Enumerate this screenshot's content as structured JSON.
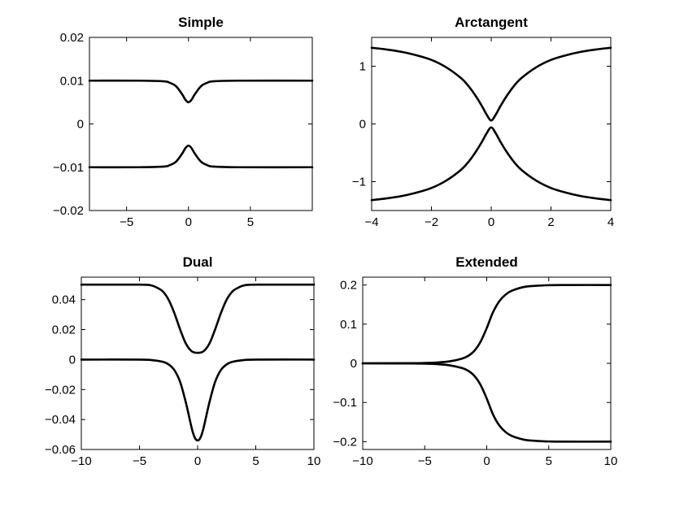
{
  "chart_data": [
    {
      "type": "line",
      "title": "Simple",
      "xlim": [
        -8,
        10
      ],
      "ylim": [
        -0.02,
        0.02
      ],
      "xticks": [
        -5,
        0,
        5
      ],
      "xtick_labels": [
        "−5",
        "0",
        "5"
      ],
      "yticks": [
        -0.02,
        -0.01,
        0,
        0.01,
        0.02
      ],
      "ytick_labels": [
        "−0.02",
        "−0.01",
        "0",
        "0.01",
        "0.02"
      ],
      "series": [
        {
          "x": [
            -8,
            -4,
            -2,
            -1.5,
            -1,
            -0.5,
            -0.25,
            0,
            0.25,
            0.5,
            1,
            1.5,
            2,
            4,
            10
          ],
          "y": [
            0.01,
            0.01,
            0.00985,
            0.0095,
            0.0087,
            0.0068,
            0.0056,
            0.005,
            0.0056,
            0.0068,
            0.0087,
            0.0095,
            0.00985,
            0.01,
            0.01
          ]
        },
        {
          "x": [
            -8,
            -4,
            -2,
            -1.5,
            -1,
            -0.5,
            -0.25,
            0,
            0.25,
            0.5,
            1,
            1.5,
            2,
            4,
            10
          ],
          "y": [
            -0.01,
            -0.01,
            -0.00985,
            -0.0095,
            -0.0087,
            -0.0068,
            -0.0056,
            -0.005,
            -0.0056,
            -0.0068,
            -0.0087,
            -0.0095,
            -0.00985,
            -0.01,
            -0.01
          ]
        }
      ]
    },
    {
      "type": "line",
      "title": "Arctangent",
      "xlim": [
        -4,
        4
      ],
      "ylim": [
        -1.5,
        1.5
      ],
      "xticks": [
        -4,
        -2,
        0,
        2,
        4
      ],
      "xtick_labels": [
        "−4",
        "−2",
        "0",
        "2",
        "4"
      ],
      "yticks": [
        -1,
        0,
        1
      ],
      "ytick_labels": [
        "−1",
        "0",
        "1"
      ],
      "series": [
        {
          "x": [
            -4,
            -3.5,
            -3,
            -2.5,
            -2,
            -1.5,
            -1,
            -0.75,
            -0.5,
            -0.3,
            -0.15,
            0,
            0.15,
            0.3,
            0.5,
            0.75,
            1,
            1.5,
            2,
            2.5,
            3,
            3.5,
            4
          ],
          "y": [
            1.32,
            1.29,
            1.25,
            1.19,
            1.11,
            0.98,
            0.79,
            0.65,
            0.47,
            0.3,
            0.16,
            0.06,
            0.16,
            0.3,
            0.47,
            0.65,
            0.79,
            0.98,
            1.11,
            1.19,
            1.25,
            1.29,
            1.32
          ]
        },
        {
          "x": [
            -4,
            -3.5,
            -3,
            -2.5,
            -2,
            -1.5,
            -1,
            -0.75,
            -0.5,
            -0.3,
            -0.15,
            0,
            0.15,
            0.3,
            0.5,
            0.75,
            1,
            1.5,
            2,
            2.5,
            3,
            3.5,
            4
          ],
          "y": [
            -1.32,
            -1.29,
            -1.25,
            -1.19,
            -1.11,
            -0.98,
            -0.79,
            -0.65,
            -0.47,
            -0.3,
            -0.16,
            -0.06,
            -0.16,
            -0.3,
            -0.47,
            -0.65,
            -0.79,
            -0.98,
            -1.11,
            -1.19,
            -1.25,
            -1.29,
            -1.32
          ]
        }
      ]
    },
    {
      "type": "line",
      "title": "Dual",
      "xlim": [
        -10,
        10
      ],
      "ylim": [
        -0.06,
        0.055
      ],
      "xticks": [
        -10,
        -5,
        0,
        5,
        10
      ],
      "xtick_labels": [
        "−10",
        "−5",
        "0",
        "5",
        "10"
      ],
      "yticks": [
        -0.06,
        -0.04,
        -0.02,
        0,
        0.02,
        0.04
      ],
      "ytick_labels": [
        "−0.06",
        "−0.04",
        "−0.02",
        "0",
        "0.02",
        "0.04"
      ],
      "series": [
        {
          "x": [
            -10,
            -5,
            -4,
            -3.5,
            -3,
            -2.5,
            -2,
            -1.5,
            -1,
            -0.5,
            0,
            0.5,
            1,
            1.5,
            2,
            2.5,
            3,
            3.5,
            4,
            5,
            10
          ],
          "y": [
            0.05,
            0.05,
            0.0495,
            0.048,
            0.0455,
            0.04,
            0.031,
            0.02,
            0.0105,
            0.0055,
            0.0045,
            0.0055,
            0.0105,
            0.02,
            0.031,
            0.04,
            0.0455,
            0.048,
            0.0495,
            0.05,
            0.05
          ]
        },
        {
          "x": [
            -10,
            -5,
            -4,
            -3,
            -2.5,
            -2,
            -1.5,
            -1,
            -0.5,
            -0.25,
            0,
            0.25,
            0.5,
            1,
            1.5,
            2,
            2.5,
            3,
            4,
            5,
            10
          ],
          "y": [
            0,
            0,
            -0.0003,
            -0.0015,
            -0.0032,
            -0.007,
            -0.015,
            -0.029,
            -0.046,
            -0.052,
            -0.054,
            -0.052,
            -0.046,
            -0.029,
            -0.015,
            -0.007,
            -0.0032,
            -0.0015,
            -0.0003,
            0,
            0
          ]
        }
      ]
    },
    {
      "type": "line",
      "title": "Extended",
      "xlim": [
        -10,
        10
      ],
      "ylim": [
        -0.22,
        0.22
      ],
      "xticks": [
        -10,
        -5,
        0,
        5,
        10
      ],
      "xtick_labels": [
        "−10",
        "−5",
        "0",
        "5",
        "10"
      ],
      "yticks": [
        -0.2,
        -0.1,
        0,
        0.1,
        0.2
      ],
      "ytick_labels": [
        "−0.2",
        "−0.1",
        "0",
        "0.1",
        "0.2"
      ],
      "series": [
        {
          "x": [
            -10,
            -6,
            -5,
            -4,
            -3,
            -2,
            -1.5,
            -1,
            -0.5,
            0,
            0.5,
            1,
            1.5,
            2,
            3,
            4,
            5,
            6,
            10
          ],
          "y": [
            0,
            0.0003,
            0.0008,
            0.002,
            0.005,
            0.012,
            0.019,
            0.032,
            0.055,
            0.09,
            0.13,
            0.158,
            0.175,
            0.185,
            0.195,
            0.198,
            0.1995,
            0.2,
            0.2
          ]
        },
        {
          "x": [
            -10,
            -6,
            -5,
            -4,
            -3,
            -2,
            -1.5,
            -1,
            -0.5,
            0,
            0.5,
            1,
            1.5,
            2,
            3,
            4,
            5,
            6,
            10
          ],
          "y": [
            0,
            -0.0003,
            -0.0008,
            -0.002,
            -0.005,
            -0.012,
            -0.019,
            -0.032,
            -0.055,
            -0.09,
            -0.13,
            -0.158,
            -0.175,
            -0.185,
            -0.195,
            -0.198,
            -0.1995,
            -0.2,
            -0.2
          ]
        }
      ]
    }
  ]
}
